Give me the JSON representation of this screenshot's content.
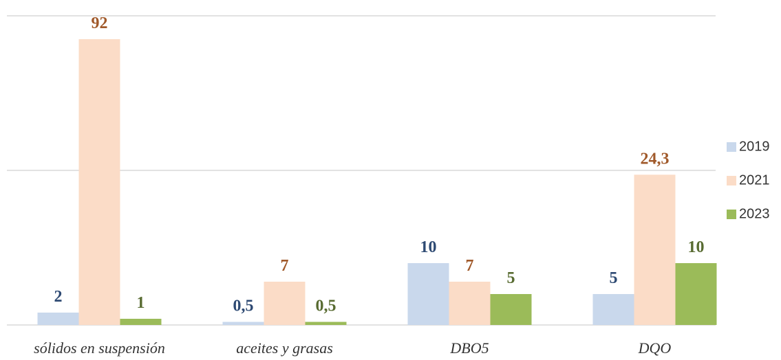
{
  "chart_data": {
    "type": "bar",
    "categories": [
      "sólidos en suspensión",
      "aceites y grasas",
      "DBO5",
      "DQO"
    ],
    "series": [
      {
        "name": "2019",
        "color": "#c9d8ec",
        "label_color": "#2e4a73",
        "values": [
          2,
          0.5,
          10,
          5
        ],
        "value_labels": [
          "2",
          "0,5",
          "10",
          "5"
        ]
      },
      {
        "name": "2021",
        "color": "#fbdcc7",
        "label_color": "#a0592a",
        "values": [
          92,
          7,
          7,
          24.3
        ],
        "value_labels": [
          "92",
          "7",
          "7",
          "24,3"
        ]
      },
      {
        "name": "2023",
        "color": "#9bbb59",
        "label_color": "#586b31",
        "values": [
          1,
          0.5,
          5,
          10
        ],
        "value_labels": [
          "1",
          "0,5",
          "5",
          "10"
        ]
      }
    ],
    "ylim": [
      0,
      50
    ],
    "yticks": [
      0,
      25,
      50
    ],
    "grid": true,
    "legend": "right"
  }
}
